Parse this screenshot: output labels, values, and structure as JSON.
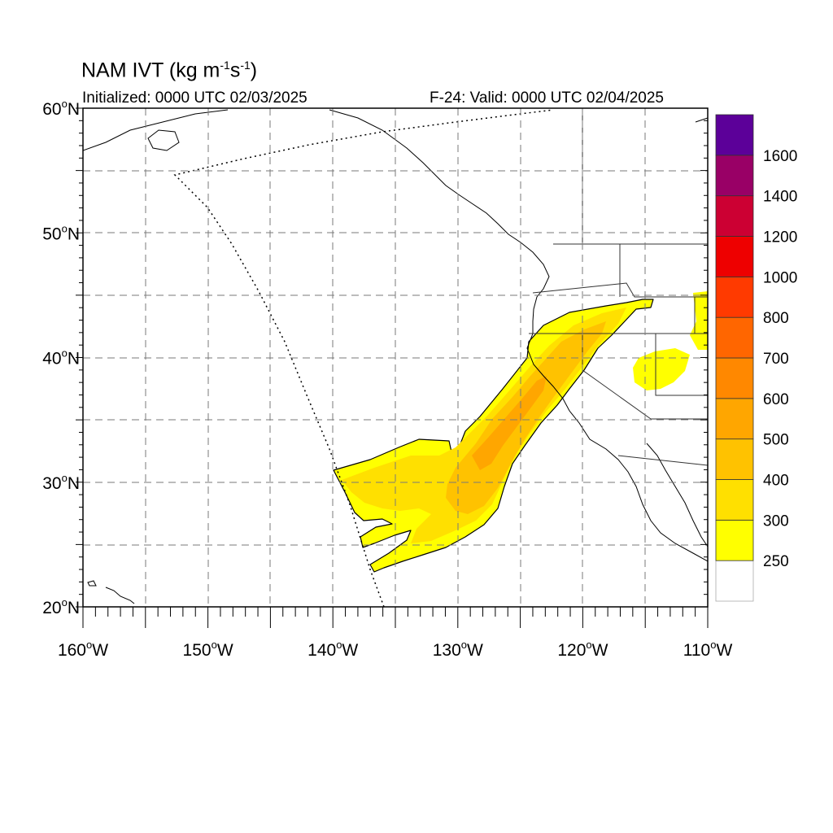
{
  "title": {
    "prefix": "NAM IVT (kg m",
    "exp1": "-1",
    "mid": "s",
    "exp2": "-1",
    "suffix": ")"
  },
  "initialized": "Initialized: 0000 UTC 02/03/2025",
  "valid": "F-24: Valid: 0000 UTC 02/04/2025",
  "lat_labels": [
    {
      "deg": "60",
      "hem": "N"
    },
    {
      "deg": "50",
      "hem": "N"
    },
    {
      "deg": "40",
      "hem": "N"
    },
    {
      "deg": "30",
      "hem": "N"
    },
    {
      "deg": "20",
      "hem": "N"
    }
  ],
  "lon_labels": [
    {
      "deg": "160",
      "hem": "W"
    },
    {
      "deg": "150",
      "hem": "W"
    },
    {
      "deg": "140",
      "hem": "W"
    },
    {
      "deg": "130",
      "hem": "W"
    },
    {
      "deg": "120",
      "hem": "W"
    },
    {
      "deg": "110",
      "hem": "W"
    }
  ],
  "colorbar": {
    "labels": [
      "250",
      "300",
      "400",
      "500",
      "600",
      "700",
      "800",
      "1000",
      "1200",
      "1400",
      "1600"
    ],
    "colors_bottom_to_top": [
      "#ffffff",
      "#ffff00",
      "#ffe000",
      "#ffc200",
      "#ffa600",
      "#ff8800",
      "#ff6600",
      "#ff3a00",
      "#ee0000",
      "#cc0033",
      "#990066",
      "#5c0099"
    ]
  },
  "map_extent": {
    "lon": [
      -160,
      -110
    ],
    "lat": [
      20,
      60
    ]
  },
  "features": [
    "ivt-plume",
    "coastlines",
    "state-borders",
    "model-domain-boundary",
    "graticule"
  ]
}
